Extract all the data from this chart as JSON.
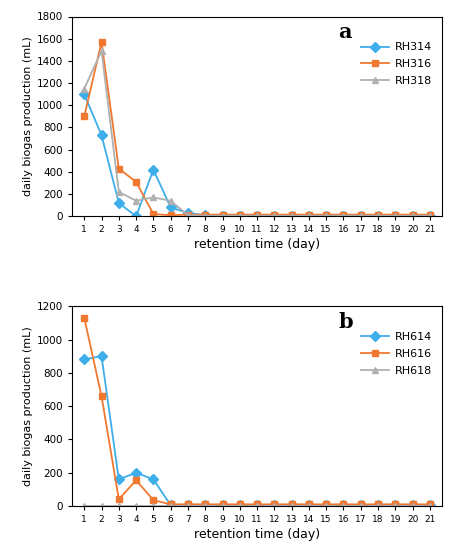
{
  "days": [
    1,
    2,
    3,
    4,
    5,
    6,
    7,
    8,
    9,
    10,
    11,
    12,
    13,
    14,
    15,
    16,
    17,
    18,
    19,
    20,
    21
  ],
  "panel_a": {
    "label": "a",
    "ylabel": "daily biogas production (mL)",
    "xlabel": "retention time (day)",
    "ylim": [
      0,
      1800
    ],
    "yticks": [
      0,
      200,
      400,
      600,
      800,
      1000,
      1200,
      1400,
      1600,
      1800
    ],
    "series": [
      {
        "name": "RH314",
        "color": "#3daee9",
        "marker": "D",
        "markersize": 5,
        "values": [
          1100,
          730,
          120,
          0,
          420,
          80,
          30,
          10,
          5,
          5,
          5,
          5,
          5,
          5,
          5,
          5,
          5,
          5,
          5,
          5,
          5
        ]
      },
      {
        "name": "RH316",
        "color": "#f07830",
        "marker": "s",
        "markersize": 5,
        "values": [
          900,
          1570,
          430,
          310,
          20,
          10,
          15,
          15,
          15,
          15,
          15,
          15,
          15,
          15,
          15,
          15,
          15,
          15,
          15,
          15,
          15
        ]
      },
      {
        "name": "RH318",
        "color": "#b0b0b0",
        "marker": "^",
        "markersize": 5,
        "values": [
          1150,
          1490,
          220,
          140,
          170,
          140,
          10,
          5,
          5,
          5,
          5,
          5,
          5,
          5,
          5,
          5,
          5,
          5,
          5,
          5,
          5
        ]
      }
    ]
  },
  "panel_b": {
    "label": "b",
    "ylabel": "daily biogas production (mL)",
    "xlabel": "retention time (day)",
    "ylim": [
      0,
      1200
    ],
    "yticks": [
      0,
      200,
      400,
      600,
      800,
      1000,
      1200
    ],
    "series": [
      {
        "name": "RH614",
        "color": "#3daee9",
        "marker": "D",
        "markersize": 5,
        "values": [
          880,
          900,
          160,
          200,
          160,
          5,
          5,
          5,
          5,
          5,
          5,
          5,
          5,
          5,
          5,
          5,
          5,
          5,
          5,
          5,
          5
        ]
      },
      {
        "name": "RH616",
        "color": "#f07830",
        "marker": "s",
        "markersize": 5,
        "values": [
          1130,
          660,
          40,
          155,
          35,
          10,
          10,
          10,
          10,
          10,
          10,
          10,
          10,
          10,
          10,
          10,
          10,
          10,
          10,
          10,
          10
        ]
      },
      {
        "name": "RH618",
        "color": "#b0b0b0",
        "marker": "^",
        "markersize": 5,
        "values": [
          0,
          0,
          0,
          0,
          0,
          0,
          0,
          0,
          0,
          0,
          0,
          0,
          0,
          0,
          0,
          0,
          0,
          0,
          0,
          0,
          0
        ]
      }
    ]
  }
}
